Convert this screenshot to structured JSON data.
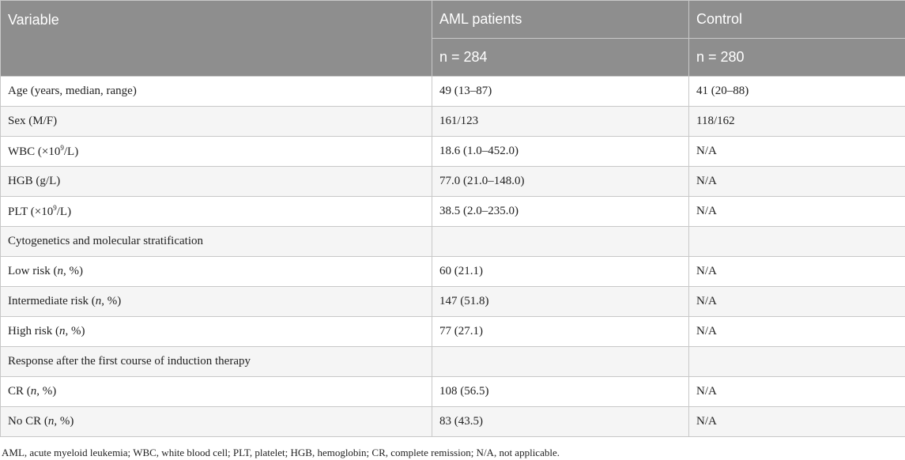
{
  "header": {
    "variable": "Variable",
    "aml": "AML patients",
    "control": "Control",
    "aml_n": "n = 284",
    "control_n": "n = 280"
  },
  "rows": [
    {
      "label": "Age (years, median, range)",
      "aml": "49 (13–87)",
      "control": "41 (20–88)"
    },
    {
      "label": "Sex (M/F)",
      "aml": "161/123",
      "control": "118/162"
    },
    {
      "label_pre": "WBC (×10",
      "label_sup": "9",
      "label_post": "/L)",
      "aml": "18.6 (1.0–452.0)",
      "control": "N/A"
    },
    {
      "label": "HGB (g/L)",
      "aml": "77.0 (21.0–148.0)",
      "control": "N/A"
    },
    {
      "label_pre": "PLT (×10",
      "label_sup": "9",
      "label_post": "/L)",
      "aml": "38.5 (2.0–235.0)",
      "control": "N/A"
    },
    {
      "label": "Cytogenetics and molecular stratification",
      "aml": "",
      "control": ""
    },
    {
      "label_pre": "Low risk (",
      "label_italic": "n",
      "label_post": ", %)",
      "aml": "60 (21.1)",
      "control": "N/A"
    },
    {
      "label_pre": "Intermediate risk (",
      "label_italic": "n",
      "label_post": ", %)",
      "aml": "147 (51.8)",
      "control": "N/A"
    },
    {
      "label_pre": "High risk (",
      "label_italic": "n",
      "label_post": ", %)",
      "aml": "77 (27.1)",
      "control": "N/A"
    },
    {
      "label": "Response after the first course of induction therapy",
      "aml": "",
      "control": ""
    },
    {
      "label_pre": "CR (",
      "label_italic": "n",
      "label_post": ", %)",
      "aml": "108 (56.5)",
      "control": "N/A"
    },
    {
      "label_pre": "No CR (",
      "label_italic": "n",
      "label_post": ", %)",
      "aml": "83 (43.5)",
      "control": "N/A"
    }
  ],
  "footnote": "AML, acute myeloid leukemia; WBC, white blood cell; PLT, platelet; HGB, hemoglobin; CR, complete remission; N/A, not applicable."
}
